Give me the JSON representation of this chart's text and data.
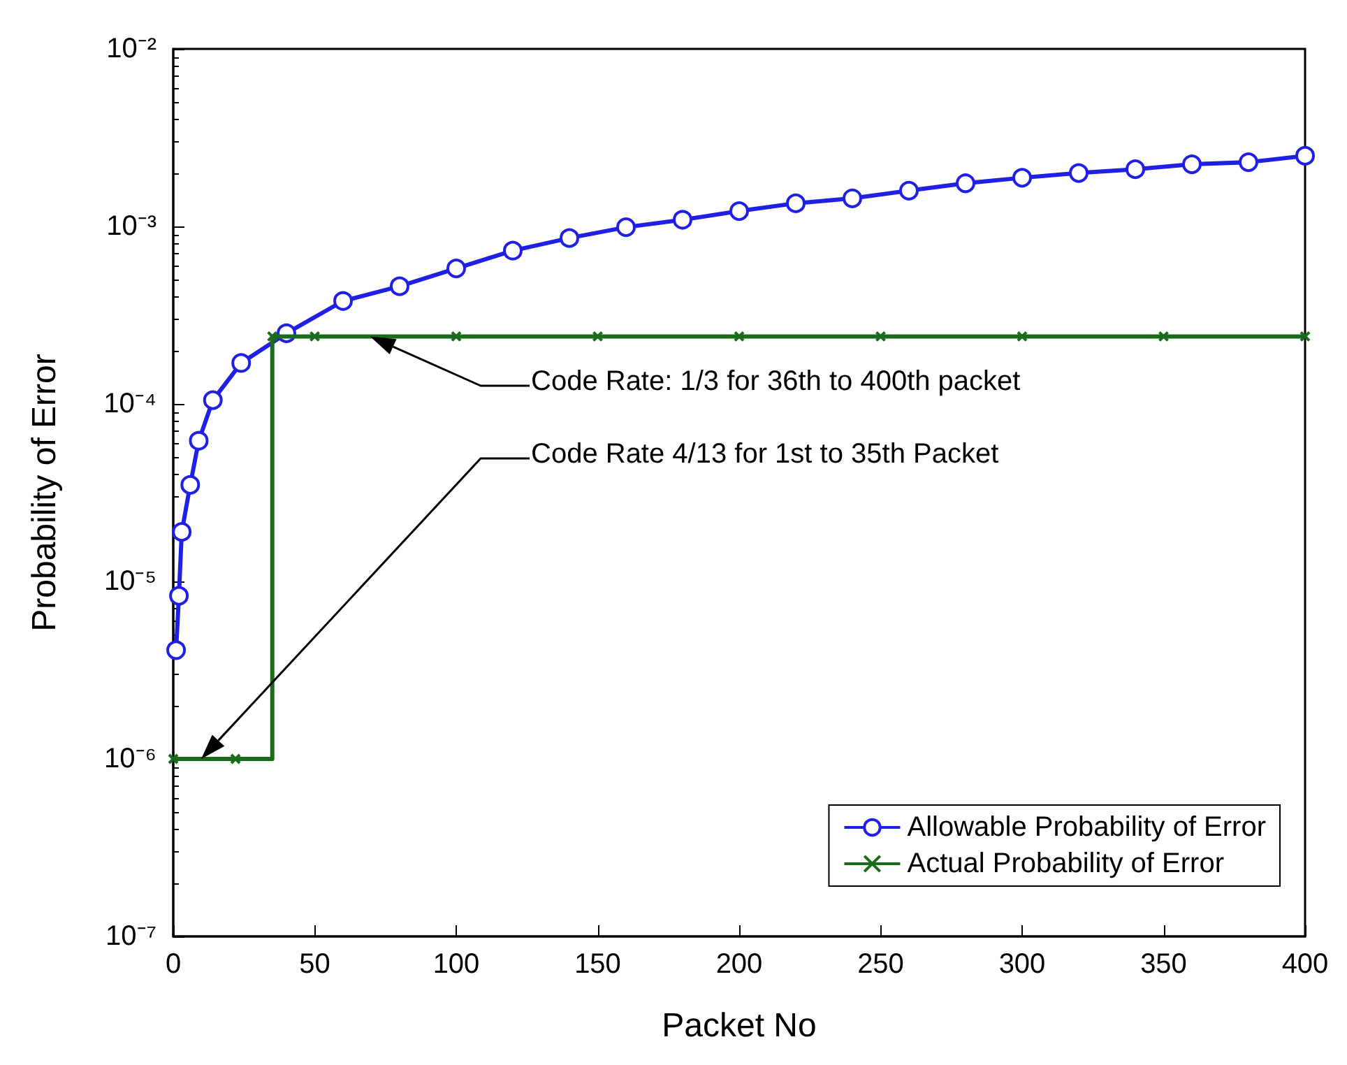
{
  "chart_data": {
    "type": "line",
    "xlabel": "Packet No",
    "ylabel": "Probability of Error",
    "series": [
      {
        "name": "Allowable Probability of Error",
        "color": "#1f1fe6",
        "marker": "circle",
        "x": [
          1,
          2,
          3,
          6,
          9,
          14,
          24,
          40,
          60,
          80,
          100,
          120,
          140,
          160,
          180,
          200,
          220,
          240,
          260,
          280,
          300,
          320,
          340,
          360,
          380,
          400
        ],
        "values": [
          4.1e-06,
          8.3e-06,
          1.9e-05,
          3.5e-05,
          6.2e-05,
          0.000105,
          0.00017,
          0.00025,
          0.00038,
          0.00046,
          0.00058,
          0.00073,
          0.00086,
          0.00099,
          0.00109,
          0.00122,
          0.00135,
          0.00144,
          0.00159,
          0.00175,
          0.00188,
          0.002,
          0.0021,
          0.00224,
          0.0023,
          0.0025
        ]
      },
      {
        "name": "Actual Probability of Error",
        "type": "step",
        "color": "#1a6b1a",
        "marker": "cross",
        "x": [
          0,
          22,
          35,
          50,
          100,
          150,
          200,
          250,
          300,
          350,
          400
        ],
        "values": [
          1e-06,
          1e-06,
          0.00024,
          0.00024,
          0.00024,
          0.00024,
          0.00024,
          0.00024,
          0.00024,
          0.00024,
          0.00024
        ]
      }
    ],
    "xlim": [
      0,
      400
    ],
    "xticks": [
      0,
      50,
      100,
      150,
      200,
      250,
      300,
      350,
      400
    ],
    "log": "y",
    "ylim": [
      1e-07,
      0.01
    ],
    "yticks": [
      {
        "value": 1e-07,
        "label": "10⁻⁷"
      },
      {
        "value": 1e-06,
        "label": "10⁻⁶"
      },
      {
        "value": 1e-05,
        "label": "10⁻⁵"
      },
      {
        "value": 0.0001,
        "label": "10⁻⁴"
      },
      {
        "value": 0.001,
        "label": "10⁻³"
      },
      {
        "value": 0.01,
        "label": "10⁻²"
      }
    ],
    "grid": false,
    "legend": "bottom right",
    "line_style": "solid",
    "annotations": [
      "Code Rate: 1/3 for 36th to 400th packet",
      "Code Rate 4/13 for 1st to 35th Packet"
    ]
  }
}
